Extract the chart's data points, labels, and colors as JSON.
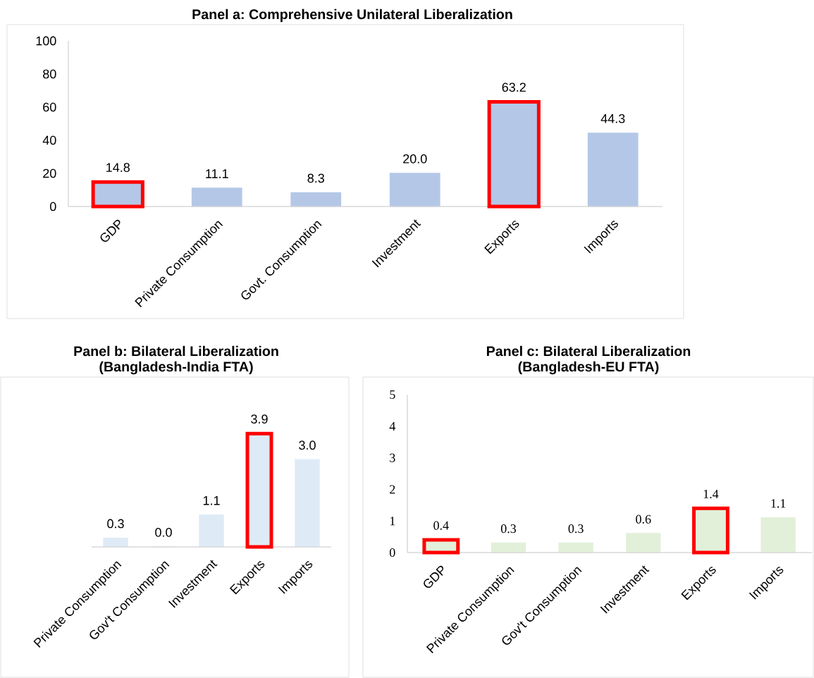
{
  "chart_data": [
    {
      "type": "bar",
      "title": "Panel a: Comprehensive Unilateral Liberalization",
      "categories": [
        "GDP",
        "Private Consumption",
        "Govt. Consumption",
        "Investment",
        "Exports",
        "Imports"
      ],
      "values": [
        14.8,
        11.1,
        8.3,
        20.0,
        63.2,
        44.3
      ],
      "value_labels": [
        "14.8",
        "11.1",
        "8.3",
        "20.0",
        "63.2",
        "44.3"
      ],
      "color": "#b4c7e7",
      "ylim": [
        0,
        100
      ],
      "yticks": [
        0,
        20,
        40,
        60,
        80,
        100
      ]
    },
    {
      "type": "bar",
      "title": "Panel b: Bilateral Liberalization",
      "subtitle": "(Bangladesh-India FTA)",
      "categories": [
        "Private Consumption",
        "Gov't Consumption",
        "Investment",
        "Exports",
        "Imports"
      ],
      "values": [
        0.3,
        0.0,
        1.1,
        3.9,
        3.0
      ],
      "value_labels": [
        "0.3",
        "0.0",
        "1.1",
        "3.9",
        "3.0"
      ],
      "color": "#deebf7",
      "tick_labels": "x"
    },
    {
      "type": "bar",
      "title": "Panel c: Bilateral Liberalization",
      "subtitle": "(Bangladesh-EU FTA)",
      "categories": [
        "GDP",
        "Private Consumption",
        "Gov't Consumption",
        "Investment",
        "Exports",
        "Imports"
      ],
      "values": [
        0.4,
        0.3,
        0.3,
        0.6,
        1.4,
        1.1
      ],
      "value_labels": [
        "0.4",
        "0.3",
        "0.3",
        "0.6",
        "1.4",
        "1.1"
      ],
      "color": "#e2f0d9",
      "ylim": [
        0,
        5
      ],
      "yticks": [
        0,
        1,
        2,
        3,
        4,
        5
      ]
    }
  ]
}
